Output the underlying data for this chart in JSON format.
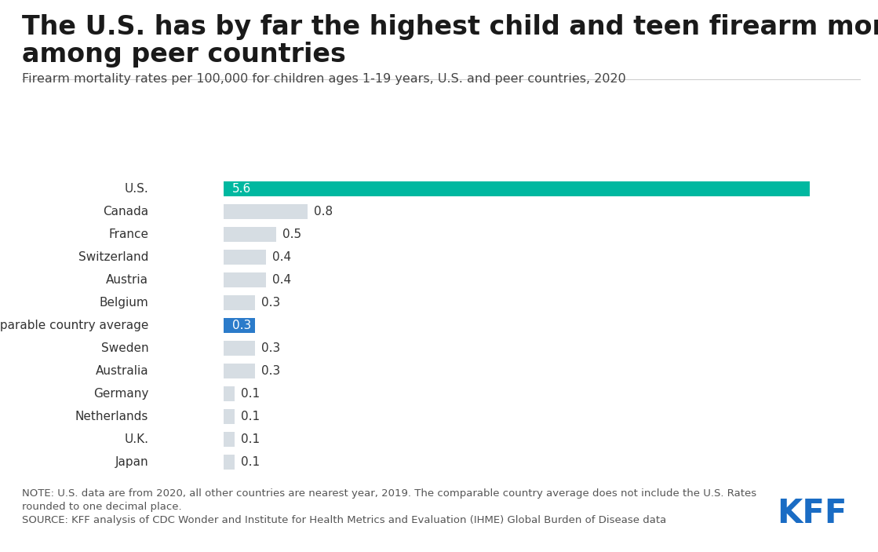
{
  "title_line1": "The U.S. has by far the highest child and teen firearm mortality rate",
  "title_line2": "among peer countries",
  "subtitle": "Firearm mortality rates per 100,000 for children ages 1-19 years, U.S. and peer countries, 2020",
  "categories": [
    "U.S.",
    "Canada",
    "France",
    "Switzerland",
    "Austria",
    "Belgium",
    "Comparable country average",
    "Sweden",
    "Australia",
    "Germany",
    "Netherlands",
    "U.K.",
    "Japan"
  ],
  "values": [
    5.6,
    0.8,
    0.5,
    0.4,
    0.4,
    0.3,
    0.3,
    0.3,
    0.3,
    0.1,
    0.1,
    0.1,
    0.1
  ],
  "bar_colors": [
    "#00b8a0",
    "#d6dde3",
    "#d6dde3",
    "#d6dde3",
    "#d6dde3",
    "#d6dde3",
    "#2b7bca",
    "#d6dde3",
    "#d6dde3",
    "#d6dde3",
    "#d6dde3",
    "#d6dde3",
    "#d6dde3"
  ],
  "label_colors": [
    "#ffffff",
    "#333333",
    "#333333",
    "#333333",
    "#333333",
    "#333333",
    "#ffffff",
    "#333333",
    "#333333",
    "#333333",
    "#333333",
    "#333333",
    "#333333"
  ],
  "label_inside": [
    true,
    false,
    false,
    false,
    false,
    false,
    true,
    false,
    false,
    false,
    false,
    false,
    false
  ],
  "note_text": "NOTE: U.S. data are from 2020, all other countries are nearest year, 2019. The comparable country average does not include the U.S. Rates\nrounded to one decimal place.\nSOURCE: KFF analysis of CDC Wonder and Institute for Health Metrics and Evaluation (IHME) Global Burden of Disease data",
  "kff_color": "#1a6cc4",
  "background_color": "#ffffff",
  "title_fontsize": 24,
  "subtitle_fontsize": 11.5,
  "label_fontsize": 11,
  "note_fontsize": 9.5,
  "xlim": [
    0,
    6.0
  ]
}
